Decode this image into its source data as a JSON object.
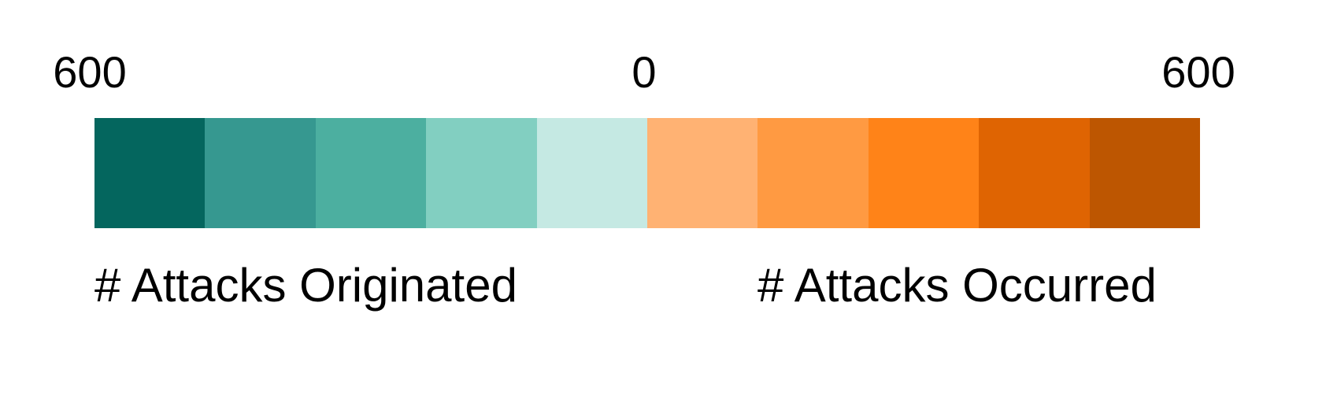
{
  "legend": {
    "ticks": {
      "left": "600",
      "center": "0",
      "right": "600"
    },
    "labels": {
      "left": "# Attacks Originated",
      "right": "# Attacks Occurred"
    },
    "swatches": [
      {
        "color": "#04665e"
      },
      {
        "color": "#369890"
      },
      {
        "color": "#4cafa0"
      },
      {
        "color": "#82cfc1"
      },
      {
        "color": "#c5e9e3"
      },
      {
        "color": "#ffb273"
      },
      {
        "color": "#ff9a42"
      },
      {
        "color": "#ff8318"
      },
      {
        "color": "#df6402"
      },
      {
        "color": "#bd5601"
      }
    ]
  }
}
